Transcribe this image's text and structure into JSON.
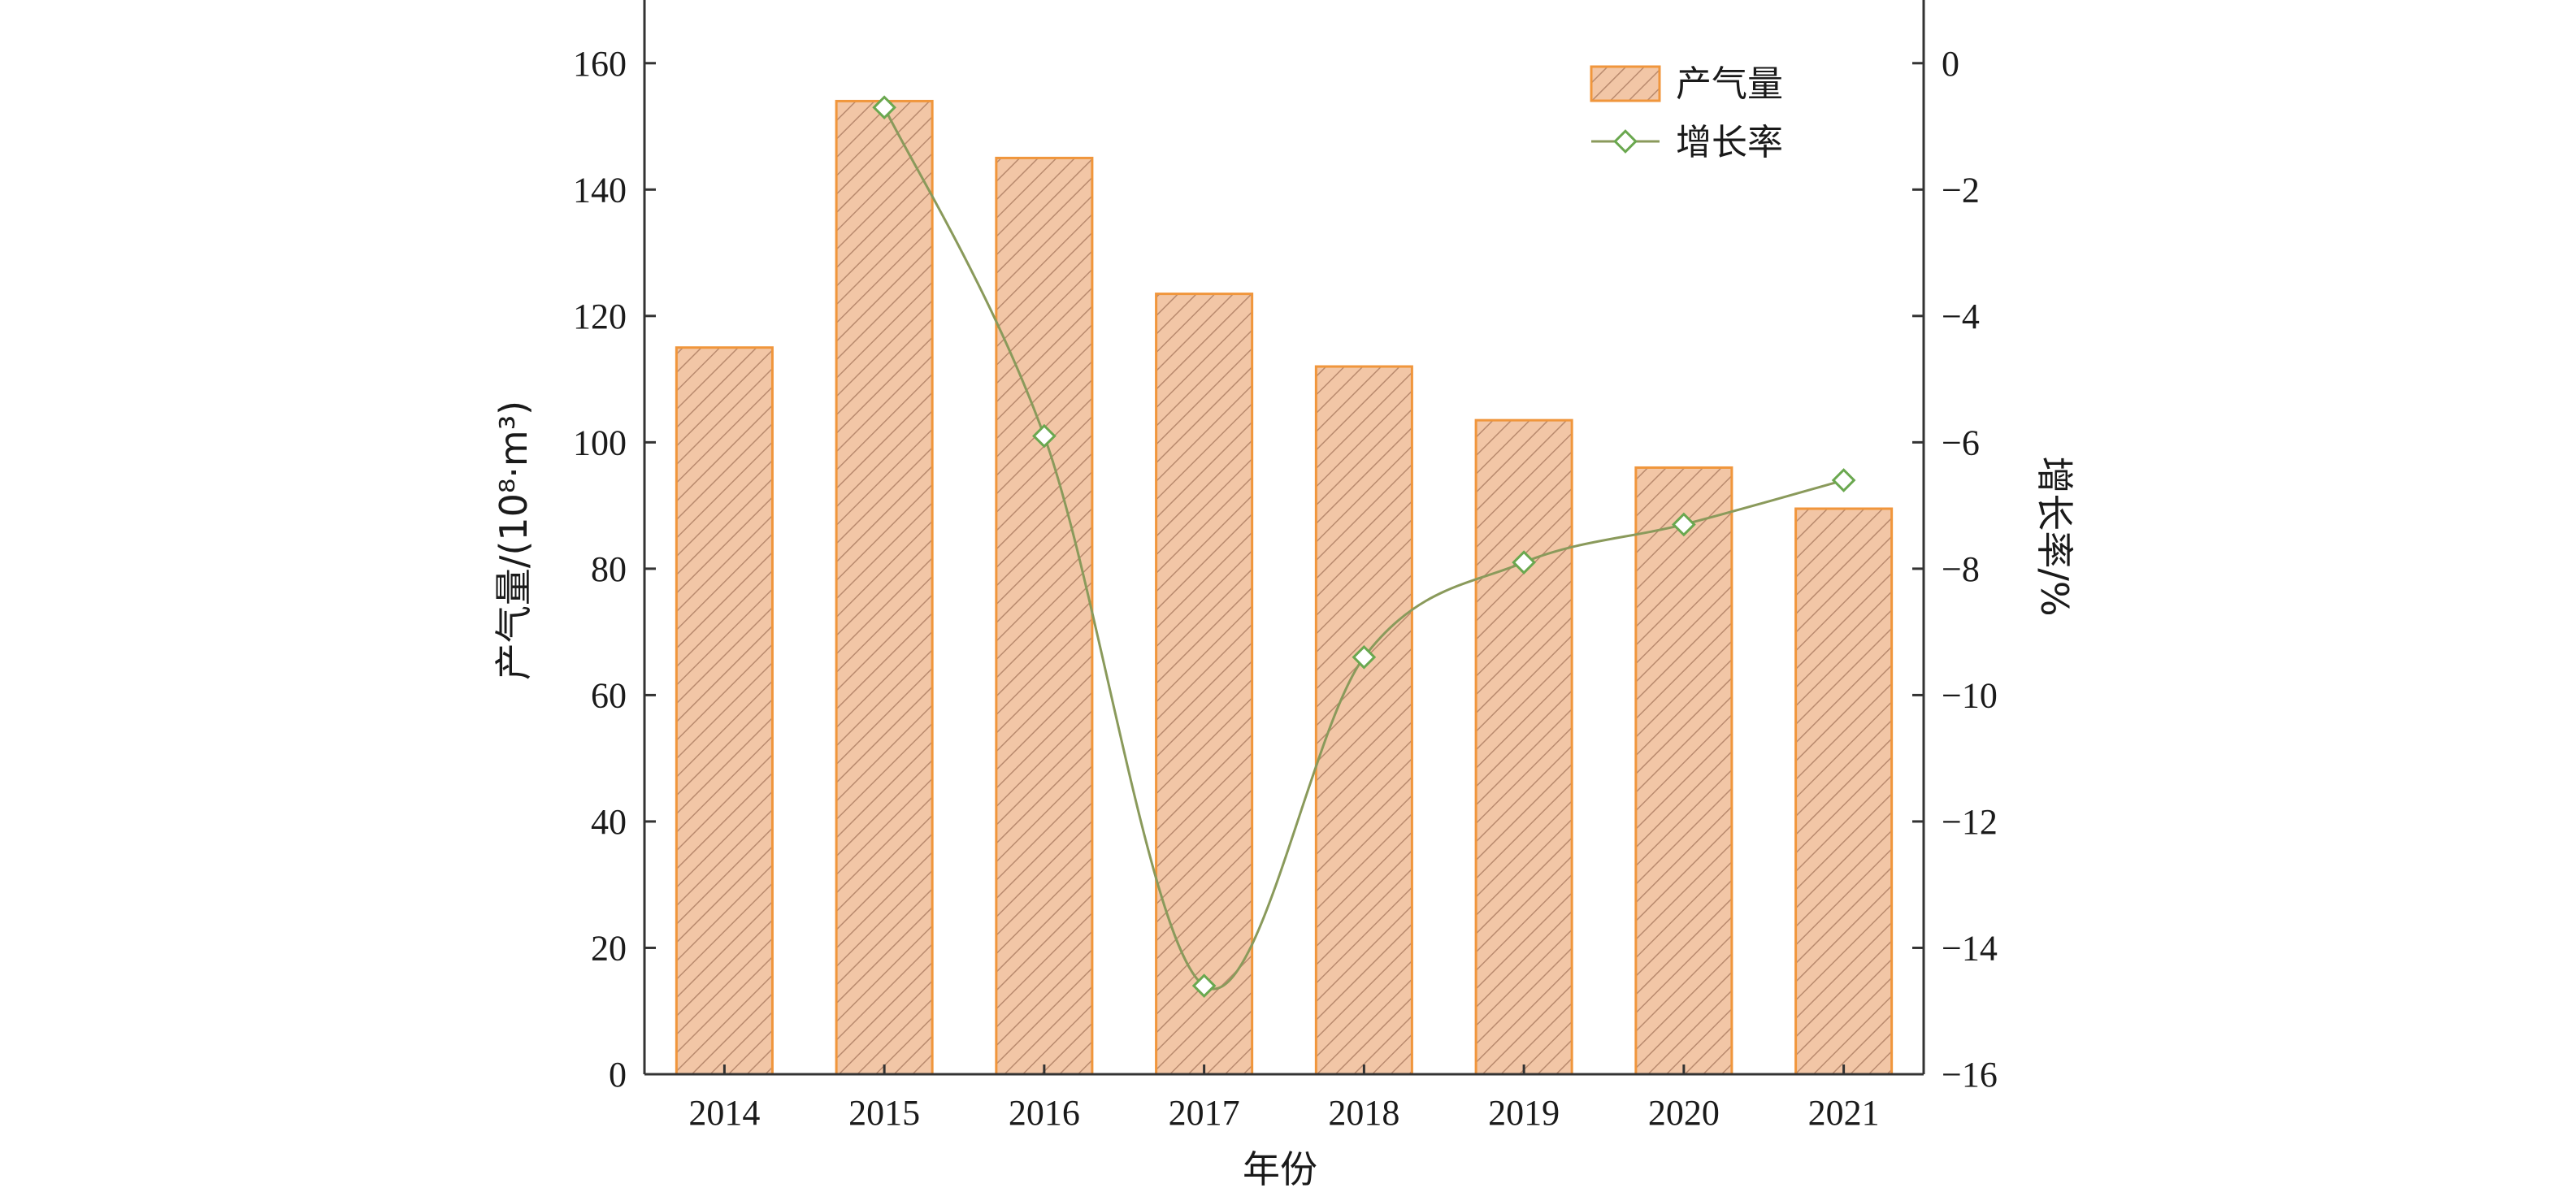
{
  "chart_data": {
    "type": "bar",
    "categories": [
      "2014",
      "2015",
      "2016",
      "2017",
      "2018",
      "2019",
      "2020",
      "2021"
    ],
    "series": [
      {
        "name": "产气量",
        "type": "bar",
        "axis": "left",
        "values": [
          115,
          154,
          145,
          123.5,
          112,
          103.5,
          96,
          89.5
        ]
      },
      {
        "name": "增长率",
        "type": "line",
        "axis": "right",
        "values": [
          null,
          -0.7,
          -5.9,
          -14.6,
          -9.4,
          -7.9,
          -7.3,
          -6.6
        ]
      }
    ],
    "xlabel": "年份",
    "ylabel": "产气量/(10⁸·m³)",
    "ylabel_right": "增长率/%",
    "ylim": [
      0,
      170
    ],
    "ylim_right": [
      -16,
      1
    ],
    "yticks": [
      0,
      20,
      40,
      60,
      80,
      100,
      120,
      140,
      160
    ],
    "yticks_right": [
      0,
      -2,
      -4,
      -6,
      -8,
      -10,
      -12,
      -14,
      -16
    ],
    "grid": false,
    "legend_position": "top-right",
    "colors": {
      "bar_fill": "#f2c6a6",
      "bar_hatch": "#b98a6e",
      "bar_border": "#f0963c",
      "line": "#8a9a5b",
      "marker_stroke": "#6aa84f",
      "marker_fill": "#ffffff",
      "axis": "#333333"
    }
  }
}
